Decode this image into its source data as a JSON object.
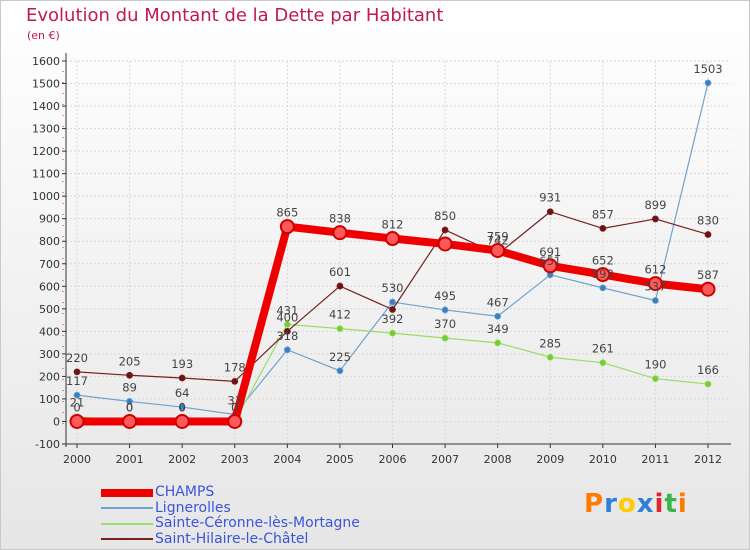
{
  "title": "Evolution du Montant de la Dette par Habitant",
  "unit": "(en €)",
  "brand": {
    "letters": [
      "P",
      "r",
      "o",
      "x",
      "i",
      "t",
      "i"
    ],
    "colors": [
      "#ff7a00",
      "#2e7fd6",
      "#ffcc00",
      "#2e7fd6",
      "#e3262b",
      "#39b54a",
      "#ff7a00"
    ]
  },
  "chart_data": {
    "type": "line",
    "x": [
      "2000",
      "2001",
      "2002",
      "2003",
      "2004",
      "2005",
      "2006",
      "2007",
      "2008",
      "2009",
      "2010",
      "2011",
      "2012"
    ],
    "ylim": [
      -100,
      1600
    ],
    "yticks": [
      -100,
      0,
      100,
      200,
      300,
      400,
      500,
      600,
      700,
      800,
      900,
      1000,
      1100,
      1200,
      1300,
      1400,
      1500,
      1600
    ],
    "grid": true,
    "legend_position": "bottom-left",
    "series": [
      {
        "name": "CHAMPS",
        "color": "#ee0000",
        "marker_color": "#ff5a5a",
        "width": 8,
        "values": [
          0,
          0,
          0,
          0,
          865,
          838,
          812,
          788,
          759,
          691,
          652,
          612,
          587
        ],
        "labels": [
          "0",
          "0",
          "0",
          "0",
          "865",
          "838",
          "812",
          "",
          "759",
          "691",
          "652",
          "612",
          "587"
        ]
      },
      {
        "name": "Lignerolles",
        "color": "#6fa3d0",
        "marker_color": "#3a7fc0",
        "width": 1.2,
        "values": [
          117,
          89,
          64,
          31,
          318,
          225,
          530,
          495,
          467,
          651,
          593,
          537,
          1503
        ],
        "labels": [
          "117",
          "89",
          "64",
          "31",
          "318",
          "225",
          "530",
          "495",
          "467",
          "651",
          "593",
          "537",
          "1503"
        ]
      },
      {
        "name": "Sainte-Céronne-lès-Mortagne",
        "color": "#99dd66",
        "marker_color": "#77cc33",
        "width": 1.2,
        "values": [
          21,
          0,
          0,
          0,
          431,
          412,
          392,
          370,
          349,
          285,
          261,
          190,
          166
        ],
        "labels": [
          "21",
          "0",
          "0",
          "0",
          "431",
          "412",
          "392",
          "370",
          "349",
          "285",
          "261",
          "190",
          "166"
        ]
      },
      {
        "name": "Saint-Hilaire-le-Châtel",
        "color": "#7a2020",
        "marker_color": "#6a1414",
        "width": 1.2,
        "values": [
          220,
          205,
          193,
          178,
          400,
          601,
          497,
          850,
          742,
          931,
          857,
          899,
          830
        ],
        "labels": [
          "220",
          "205",
          "193",
          "178",
          "400",
          "601",
          "",
          "850",
          "742",
          "931",
          "857",
          "899",
          "830"
        ]
      }
    ]
  }
}
